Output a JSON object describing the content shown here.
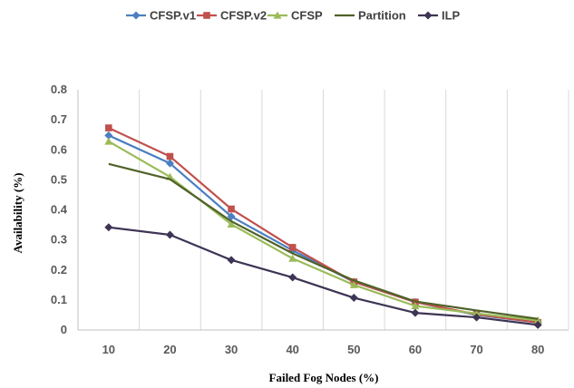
{
  "chart_data": {
    "type": "line",
    "x": [
      10,
      20,
      30,
      40,
      50,
      60,
      70,
      80
    ],
    "xlabel": "Failed Fog Nodes (%)",
    "ylabel": "Availability (%)",
    "ylim": [
      0,
      0.8
    ],
    "yticks": [
      "0",
      "0.1",
      "0.2",
      "0.3",
      "0.4",
      "0.5",
      "0.6",
      "0.7",
      "0.8"
    ],
    "xticks": [
      "10",
      "20",
      "30",
      "40",
      "50",
      "60",
      "70",
      "80"
    ],
    "grid": "vertical",
    "legend_position": "top",
    "series": [
      {
        "name": "CFSP.v1",
        "color": "#4a7fc1",
        "marker": "diamond",
        "values": [
          0.648,
          0.555,
          0.378,
          0.265,
          0.16,
          0.093,
          0.05,
          0.025
        ]
      },
      {
        "name": "CFSP.v2",
        "color": "#c0504d",
        "marker": "square",
        "values": [
          0.673,
          0.578,
          0.403,
          0.275,
          0.16,
          0.093,
          0.052,
          0.025
        ]
      },
      {
        "name": "CFSP",
        "color": "#9bbb59",
        "marker": "triangle",
        "values": [
          0.628,
          0.51,
          0.352,
          0.238,
          0.15,
          0.08,
          0.055,
          0.032
        ]
      },
      {
        "name": "Partition",
        "color": "#4f6228",
        "marker": "none",
        "values": [
          0.553,
          0.502,
          0.362,
          0.255,
          0.165,
          0.095,
          0.065,
          0.037
        ]
      },
      {
        "name": "ILP",
        "color": "#3e3454",
        "marker": "diamond",
        "values": [
          0.342,
          0.317,
          0.233,
          0.175,
          0.107,
          0.057,
          0.042,
          0.017
        ]
      }
    ]
  }
}
